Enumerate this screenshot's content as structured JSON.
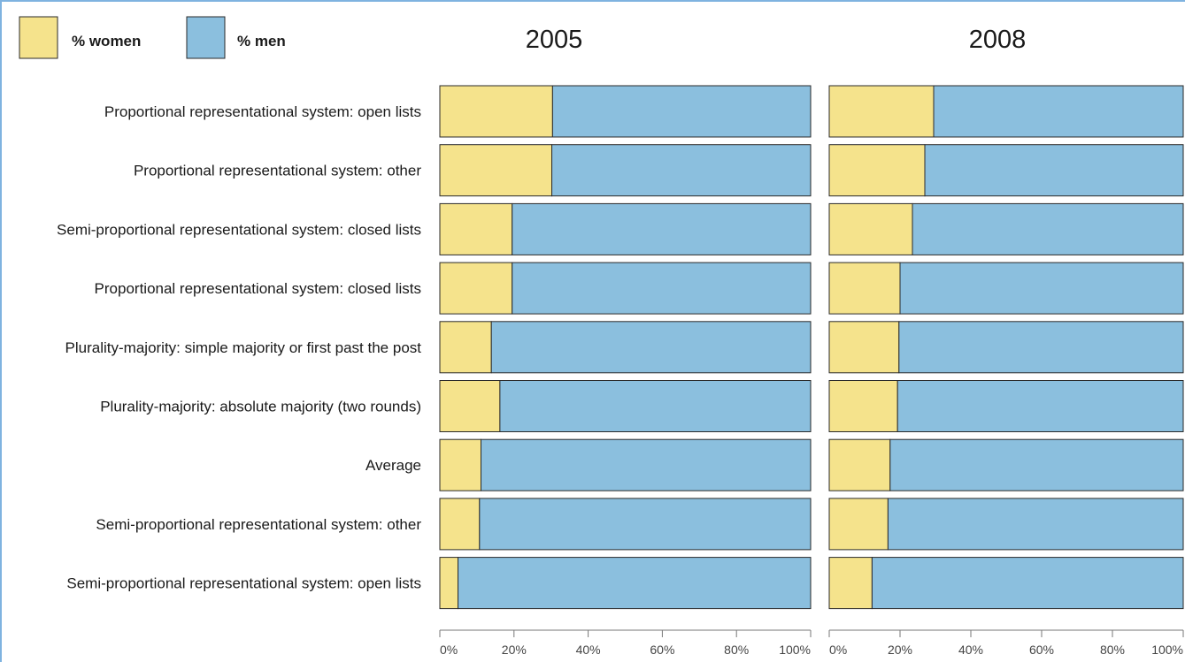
{
  "legend": {
    "women_label": "% women",
    "men_label": "% men"
  },
  "colors": {
    "women": "#f5e38c",
    "men": "#8bbfde",
    "frame": "#7fb3e0",
    "bar_stroke": "#2a2a2a"
  },
  "chart_data": {
    "type": "bar",
    "orientation": "horizontal",
    "stacked": "100%",
    "categories": [
      "Proportional representational system: open lists",
      "Proportional representational system: other",
      "Semi-proportional representational system: closed lists",
      "Proportional representational system: closed lists",
      "Plurality-majority: simple majority or first past the post",
      "Plurality-majority: absolute majority (two rounds)",
      "Average",
      "Semi-proportional representational system: other",
      "Semi-proportional representational system: open lists"
    ],
    "panels": [
      {
        "title": "2005",
        "series": [
          {
            "name": "% women",
            "values": [
              30.4,
              30.2,
              19.5,
              19.5,
              13.9,
              16.2,
              11.1,
              10.7,
              4.9
            ]
          },
          {
            "name": "% men",
            "values": [
              69.6,
              69.8,
              80.5,
              80.5,
              86.1,
              83.8,
              88.9,
              89.3,
              95.1
            ]
          }
        ]
      },
      {
        "title": "2008",
        "series": [
          {
            "name": "% women",
            "values": [
              29.5,
              27.0,
              23.5,
              20.0,
              19.7,
              19.3,
              17.2,
              16.6,
              12.1
            ]
          },
          {
            "name": "% men",
            "values": [
              70.5,
              73.0,
              76.5,
              80.0,
              80.3,
              80.7,
              82.8,
              83.4,
              87.9
            ]
          }
        ]
      }
    ],
    "xlim": [
      0,
      100
    ],
    "x_ticks": [
      "0%",
      "20%",
      "40%",
      "60%",
      "80%",
      "100%"
    ],
    "legend_position": "top-left",
    "grid": false
  }
}
